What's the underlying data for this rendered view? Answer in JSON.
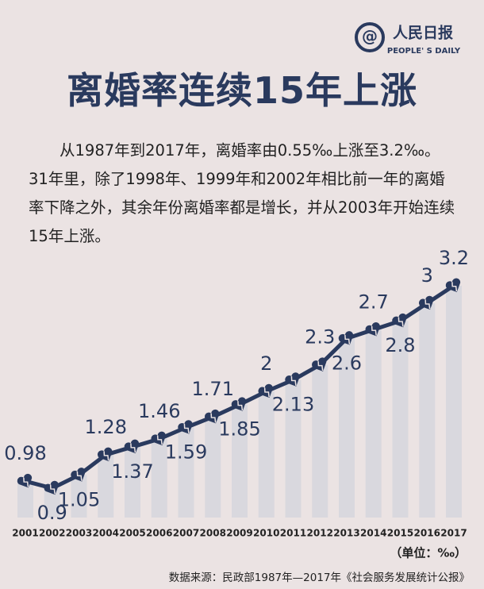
{
  "chart_data": {
    "type": "line",
    "brand": "人民日报",
    "brand_en": "PEOPLE' S DAILY",
    "title": "离婚率连续15年上涨",
    "subtitle": "从1987年到2017年，离婚率由0.55‰上涨至3.2‰。31年里，除了1998年、1999年和2002年相比前一年的离婚率下降之外，其余年份离婚率都是增长，并从2003年开始连续15年上涨。",
    "categories": [
      "2001",
      "2002",
      "2003",
      "2004",
      "2005",
      "2006",
      "2007",
      "2008",
      "2009",
      "2010",
      "2011",
      "2012",
      "2013",
      "2014",
      "2015",
      "2016",
      "2017"
    ],
    "values": [
      0.98,
      0.9,
      1.05,
      1.28,
      1.37,
      1.46,
      1.59,
      1.71,
      1.85,
      2,
      2.13,
      2.3,
      2.6,
      2.7,
      2.8,
      3,
      3.2
    ],
    "color": "#2a3a5e",
    "bar_color": "#d9d8de",
    "unit": "（单位：‰）",
    "source": "数据来源：民政部1987年—2017年《社会服务发展统计公报》"
  }
}
